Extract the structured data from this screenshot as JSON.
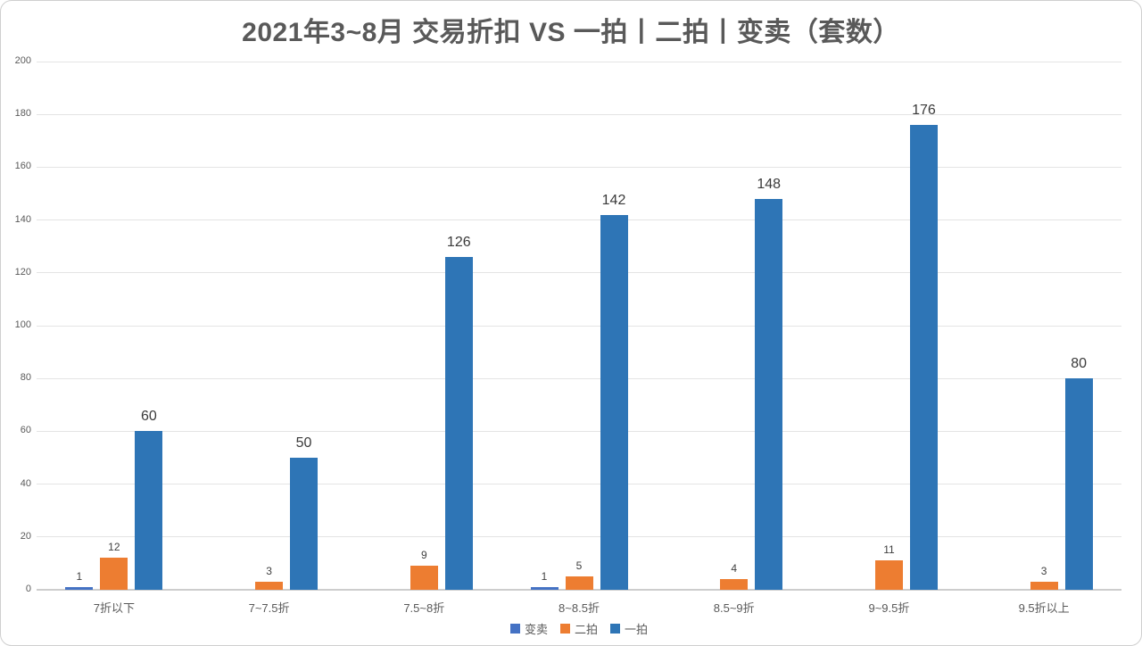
{
  "title": "2021年3~8月 交易折扣 VS 一拍丨二拍丨变卖（套数）",
  "colors": {
    "bianmai": "#4472C4",
    "erpai": "#ED7D31",
    "yipai": "#2E75B6",
    "gridline": "#E4E4E4",
    "axis_line": "#CDCDCD",
    "tick_text": "#595959",
    "title_text": "#595959",
    "data_label": "#404040"
  },
  "chart_data": {
    "type": "bar",
    "title": "2021年3~8月 交易折扣 VS 一拍丨二拍丨变卖（套数）",
    "categories": [
      "7折以下",
      "7~7.5折",
      "7.5~8折",
      "8~8.5折",
      "8.5~9折",
      "9~9.5折",
      "9.5折以上"
    ],
    "series": [
      {
        "key": "bianmai",
        "name": "变卖",
        "color": "#4472C4",
        "label_size": "small",
        "values": [
          1,
          0,
          0,
          1,
          0,
          0,
          0
        ]
      },
      {
        "key": "erpai",
        "name": "二拍",
        "color": "#ED7D31",
        "label_size": "small",
        "values": [
          12,
          3,
          9,
          5,
          4,
          11,
          3
        ]
      },
      {
        "key": "yipai",
        "name": "一拍",
        "color": "#2E75B6",
        "label_size": "large",
        "values": [
          60,
          50,
          126,
          142,
          148,
          176,
          80
        ]
      }
    ],
    "xlabel": "",
    "ylabel": "",
    "ylim": [
      0,
      200
    ],
    "y_ticks": [
      0,
      20,
      40,
      60,
      80,
      100,
      120,
      140,
      160,
      180,
      200
    ],
    "grid": true,
    "legend_position": "bottom",
    "legend": [
      "变卖",
      "二拍",
      "一拍"
    ]
  }
}
